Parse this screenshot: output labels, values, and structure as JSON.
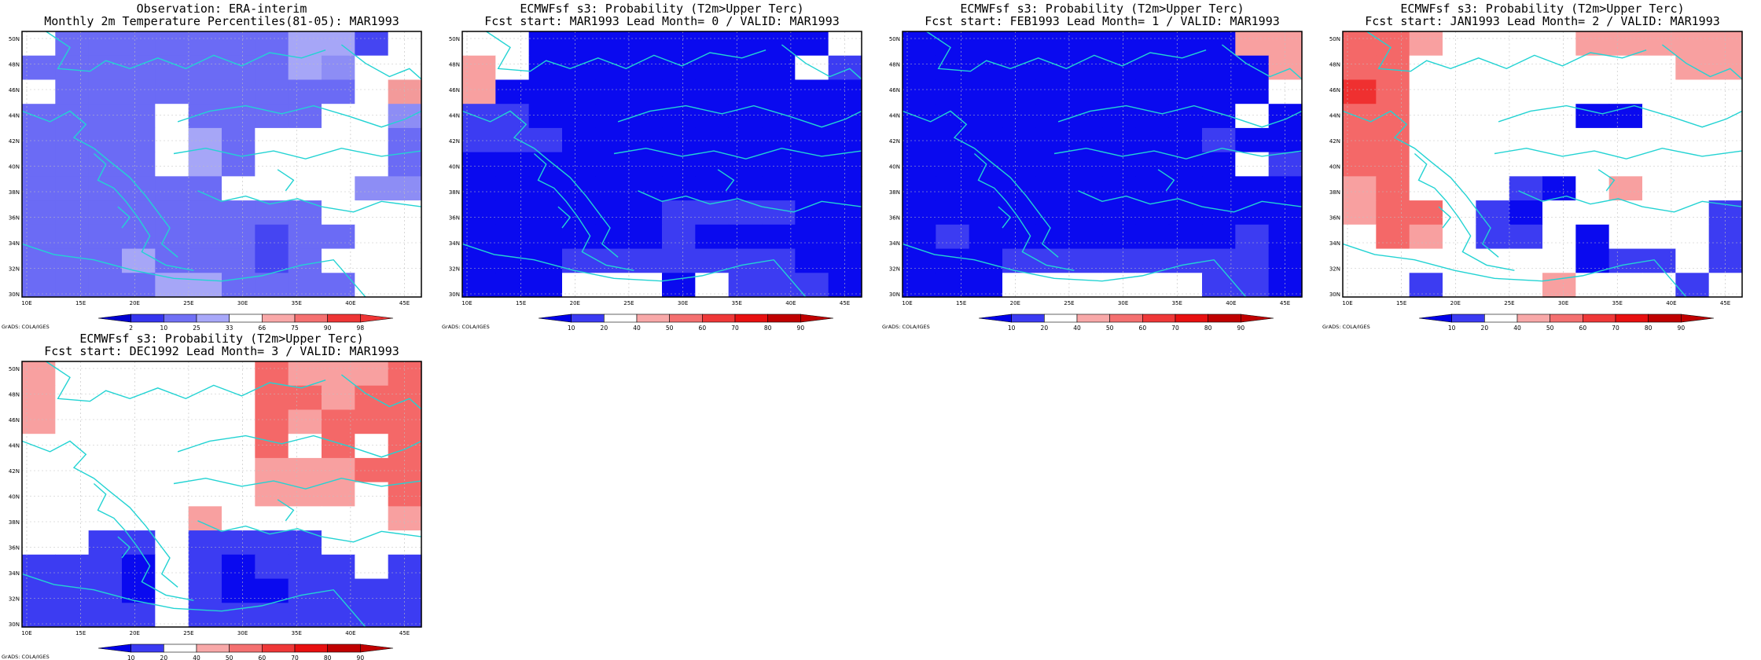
{
  "lat_ticks": [
    "30N",
    "32N",
    "34N",
    "36N",
    "38N",
    "40N",
    "42N",
    "44N",
    "46N",
    "48N",
    "50N"
  ],
  "lon_ticks": [
    "10E",
    "15E",
    "20E",
    "25E",
    "30E",
    "35E",
    "40E",
    "45E"
  ],
  "credit": "GrADS: COLA/IGES",
  "colors": {
    "obs": {
      "a": "#6b6bf5",
      "b": "#4545f2",
      "c": "#a6a6f7",
      "d": "#8d8df5",
      "w": "#ffffff",
      "p": "#f39a9a"
    },
    "fcst": {
      "B": "#0a0aef",
      "b": "#3c3cf2",
      "w": "#ffffff",
      "p": "#f8a0a0",
      "P": "#f46868",
      "R": "#ef3030"
    },
    "coast": "#23d3d3"
  },
  "panels": [
    {
      "title1": "Observation: ERA-interim",
      "title2": "Monthly 2m Temperature Percentiles(81-05): MAR1993",
      "palette": "obs",
      "grid": [
        "waaaaaaaccbw",
        "aaaaaaaacdww",
        "waaaaaaaaawp",
        "aaaawaaaawwd",
        "aaaawcawwwwa",
        "aaaawcawwwwa",
        "aaaaaawwwwdd",
        "aaaaaaaaawww",
        "aaaaaaabaaww",
        "aaacaaabawww",
        "aaaaccaaaaww"
      ],
      "legend": [
        {
          "label": "2",
          "color": "#0000d0"
        },
        {
          "label": "10",
          "color": "#3535ee"
        },
        {
          "label": "25",
          "color": "#7070f5"
        },
        {
          "label": "33",
          "color": "#a8a8f9"
        },
        {
          "label": "66",
          "color": "#ffffff"
        },
        {
          "label": "75",
          "color": "#f9a8a8"
        },
        {
          "label": "90",
          "color": "#f57070"
        },
        {
          "label": "98",
          "color": "#ee3535"
        }
      ]
    },
    {
      "title1": "ECMWFsf s3: Probability (T2m>Upper Terc)",
      "title2": "Fcst start: MAR1993   Lead Month= 0 / VALID: MAR1993",
      "palette": "fcst",
      "grid": [
        "wwBBBBBBBBBw",
        "pwBBBBBBBBwb",
        "pBBBBBBBBBBB",
        "bbBBBBBBBBBB",
        "bbbBBBBBBBBB",
        "BBBBBBBBBBBB",
        "BBBBBBBBBBBB",
        "BBBBBBbbbbBB",
        "BBBBBBbBBBBB",
        "BBBbbbbbbbBB",
        "BBBwwwBwbbbB"
      ],
      "legend": [
        {
          "label": "10",
          "color": "#0000e8"
        },
        {
          "label": "20",
          "color": "#3b3bf2"
        },
        {
          "label": "40",
          "color": "#ffffff"
        },
        {
          "label": "50",
          "color": "#f8a8a8"
        },
        {
          "label": "60",
          "color": "#f47070"
        },
        {
          "label": "70",
          "color": "#ef3838"
        },
        {
          "label": "80",
          "color": "#e81010"
        },
        {
          "label": "90",
          "color": "#c00000"
        }
      ]
    },
    {
      "title1": "ECMWFsf s3: Probability (T2m>Upper Terc)",
      "title2": "Fcst start: FEB1993   Lead Month= 1 / VALID: MAR1993",
      "palette": "fcst",
      "grid": [
        "BBBBBBBBBBpp",
        "BBBBBBBBBBBp",
        "BBBBBBBBBBBw",
        "BBBBBBBBBBwB",
        "BBBBBBBBBbBB",
        "BBBBBBBBBBwb",
        "BBBBBBBBBBBB",
        "BBBBBBBBBBBB",
        "BbBBBBBBBBbB",
        "BBBbbbbbbbbB",
        "BBBwwwwwwbbB"
      ],
      "legend": [
        {
          "label": "10",
          "color": "#0000e8"
        },
        {
          "label": "20",
          "color": "#3b3bf2"
        },
        {
          "label": "40",
          "color": "#ffffff"
        },
        {
          "label": "50",
          "color": "#f8a8a8"
        },
        {
          "label": "60",
          "color": "#f47070"
        },
        {
          "label": "70",
          "color": "#ef3838"
        },
        {
          "label": "80",
          "color": "#e81010"
        },
        {
          "label": "90",
          "color": "#c00000"
        }
      ]
    },
    {
      "title1": "ECMWFsf s3: Probability (T2m>Upper Terc)",
      "title2": "Fcst start: JAN1993   Lead Month= 2 / VALID: MAR1993",
      "palette": "fcst",
      "grid": [
        "PPpwwwwppppp",
        "PPwwwwwwwwpp",
        "RPwwwwwwwwww",
        "PPwwwwwBBwww",
        "PPwwwwwwwwww",
        "PPwwwwwwwwww",
        "pPwwwbBwpwww",
        "pPPwbBwwwwwb",
        "wPpwbbwBwwwb",
        "wwwwwwwBbbwb",
        "wwbwwwpwwwbw"
      ],
      "legend": [
        {
          "label": "10",
          "color": "#0000e8"
        },
        {
          "label": "20",
          "color": "#3b3bf2"
        },
        {
          "label": "40",
          "color": "#ffffff"
        },
        {
          "label": "50",
          "color": "#f8a8a8"
        },
        {
          "label": "60",
          "color": "#f47070"
        },
        {
          "label": "70",
          "color": "#ef3838"
        },
        {
          "label": "80",
          "color": "#e81010"
        },
        {
          "label": "90",
          "color": "#c00000"
        }
      ]
    },
    {
      "title1": "ECMWFsf s3: Probability (T2m>Upper Terc)",
      "title2": "Fcst start: DEC1992   Lead Month= 3 / VALID: MAR1993",
      "palette": "fcst",
      "grid": [
        "pwwwwwwPpppP",
        "pwwwwwwPPpPP",
        "pwwwwwwPpPPP",
        "wwwwwwwPwPwP",
        "wwwwwwwpppPP",
        "wwwwwwwpppwP",
        "wwwwwpwwwwwp",
        "wwbbwbbbbwww",
        "bbbBwbBbbbwb",
        "bbbBwbBBbbbb",
        "bbbbwbbbbbbb"
      ],
      "legend": [
        {
          "label": "10",
          "color": "#0000e8"
        },
        {
          "label": "20",
          "color": "#3b3bf2"
        },
        {
          "label": "40",
          "color": "#ffffff"
        },
        {
          "label": "50",
          "color": "#f8a8a8"
        },
        {
          "label": "60",
          "color": "#f47070"
        },
        {
          "label": "70",
          "color": "#ef3838"
        },
        {
          "label": "80",
          "color": "#e81010"
        },
        {
          "label": "90",
          "color": "#c00000"
        }
      ]
    }
  ],
  "chart_data": [
    {
      "type": "heatmap",
      "title": "Observation: ERA-interim / Monthly 2m Temperature Percentiles(81-05): MAR1993",
      "xlim": [
        "10E",
        "45E"
      ],
      "ylim": [
        "30N",
        "50N"
      ],
      "legend": [
        "2",
        "10",
        "25",
        "33",
        "66",
        "75",
        "90",
        "98"
      ],
      "grid": "see panels.0.grid"
    },
    {
      "type": "heatmap",
      "title": "ECMWFsf s3: Probability (T2m>Upper Terc) / Fcst start: MAR1993 Lead Month= 0 / VALID: MAR1993",
      "xlim": [
        "10E",
        "45E"
      ],
      "ylim": [
        "30N",
        "50N"
      ],
      "legend": [
        "10",
        "20",
        "40",
        "50",
        "60",
        "70",
        "80",
        "90"
      ],
      "grid": "see panels.1.grid"
    },
    {
      "type": "heatmap",
      "title": "ECMWFsf s3: Probability (T2m>Upper Terc) / Fcst start: FEB1993 Lead Month= 1 / VALID: MAR1993",
      "xlim": [
        "10E",
        "45E"
      ],
      "ylim": [
        "30N",
        "50N"
      ],
      "legend": [
        "10",
        "20",
        "40",
        "50",
        "60",
        "70",
        "80",
        "90"
      ],
      "grid": "see panels.2.grid"
    },
    {
      "type": "heatmap",
      "title": "ECMWFsf s3: Probability (T2m>Upper Terc) / Fcst start: JAN1993 Lead Month= 2 / VALID: MAR1993",
      "xlim": [
        "10E",
        "45E"
      ],
      "ylim": [
        "30N",
        "50N"
      ],
      "legend": [
        "10",
        "20",
        "40",
        "50",
        "60",
        "70",
        "80",
        "90"
      ],
      "grid": "see panels.3.grid"
    },
    {
      "type": "heatmap",
      "title": "ECMWFsf s3: Probability (T2m>Upper Terc) / Fcst start: DEC1992 Lead Month= 3 / VALID: MAR1993",
      "xlim": [
        "10E",
        "45E"
      ],
      "ylim": [
        "30N",
        "50N"
      ],
      "legend": [
        "10",
        "20",
        "40",
        "50",
        "60",
        "70",
        "80",
        "90"
      ],
      "grid": "see panels.4.grid"
    }
  ]
}
